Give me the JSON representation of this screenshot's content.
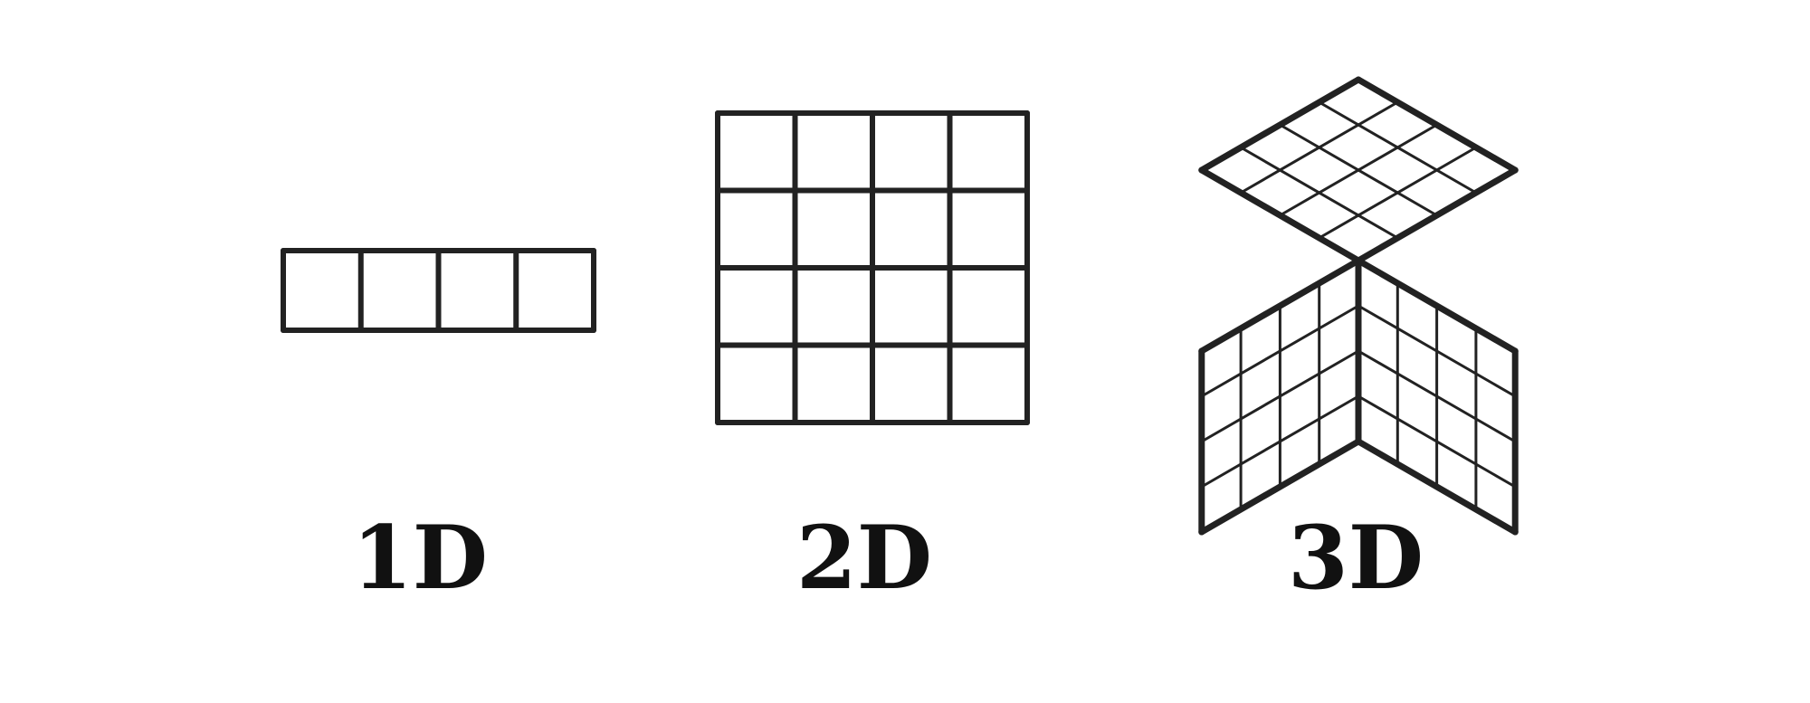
{
  "panels": [
    {
      "id": "1d",
      "label": "1D"
    },
    {
      "id": "2d",
      "label": "2D"
    },
    {
      "id": "3d",
      "label": "3D"
    }
  ],
  "grid": {
    "cells_per_side": 4
  },
  "colors": {
    "stroke": "#222222",
    "text": "#111111",
    "background": "#ffffff"
  }
}
